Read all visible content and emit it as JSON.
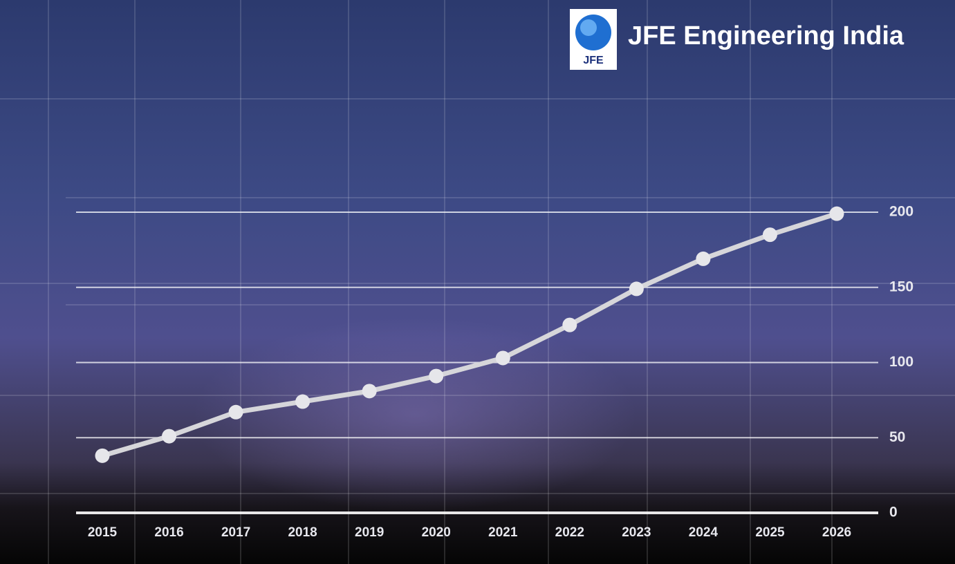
{
  "brand": {
    "name": "JFE Engineering India",
    "logo_text": "JFE"
  },
  "chart_data": {
    "type": "line",
    "categories": [
      "2015",
      "2016",
      "2017",
      "2018",
      "2019",
      "2020",
      "2021",
      "2022",
      "2023",
      "2024",
      "2025",
      "2026"
    ],
    "values": [
      38,
      51,
      67,
      74,
      81,
      91,
      103,
      125,
      149,
      169,
      185,
      199
    ],
    "color": "#d6d6da",
    "ylim": [
      0,
      200
    ],
    "yticks": [
      0,
      50,
      100,
      150,
      200
    ],
    "grid": true
  }
}
